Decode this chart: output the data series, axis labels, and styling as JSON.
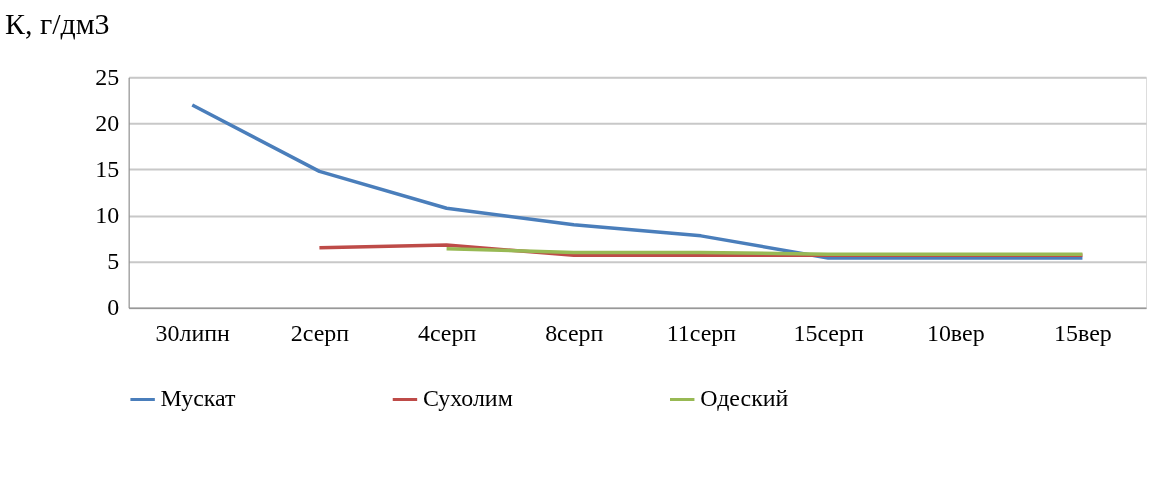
{
  "chart_data": {
    "type": "line",
    "title": "К, г/дм3",
    "categories": [
      "30липн",
      "2серп",
      "4серп",
      "8серп",
      "11серп",
      "15серп",
      "10вер",
      "15вер"
    ],
    "series": [
      {
        "name": "Мускат",
        "color": "#4a7ebb",
        "values": [
          22.0,
          14.8,
          10.8,
          9.0,
          7.8,
          5.4,
          5.4,
          5.4
        ]
      },
      {
        "name": "Сухолим",
        "color": "#be4b48",
        "values": [
          null,
          6.5,
          6.8,
          5.7,
          5.7,
          5.7,
          5.7,
          5.7
        ]
      },
      {
        "name": "Одеский",
        "color": "#98b954",
        "values": [
          null,
          null,
          6.4,
          6.0,
          6.0,
          5.8,
          5.8,
          5.8
        ]
      }
    ],
    "ylim": [
      0,
      25
    ],
    "yticks": [
      0,
      5,
      10,
      15,
      20,
      25
    ],
    "grid": "y",
    "legend": "bottom",
    "marker": "none",
    "line_style": "solid"
  }
}
